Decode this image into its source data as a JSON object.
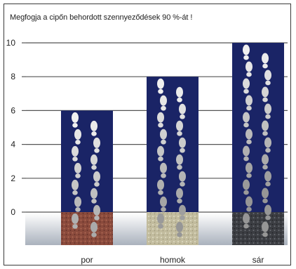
{
  "chart_data": {
    "type": "bar",
    "title": "Megfogja a cipőn behordott szennyeződések 90 %-át !",
    "categories": [
      "por",
      "homok",
      "sár"
    ],
    "values": [
      6,
      8,
      10
    ],
    "ylim": [
      0,
      10
    ],
    "yticks": [
      0,
      2,
      4,
      6,
      8,
      10
    ],
    "grid": true,
    "colors": {
      "bar": "#1a2466",
      "grid": "#555555",
      "floor": "#b9c0c9",
      "por": "#8a4a3c",
      "homok": "#c2bc9e",
      "sar": "#3b3d42"
    }
  }
}
